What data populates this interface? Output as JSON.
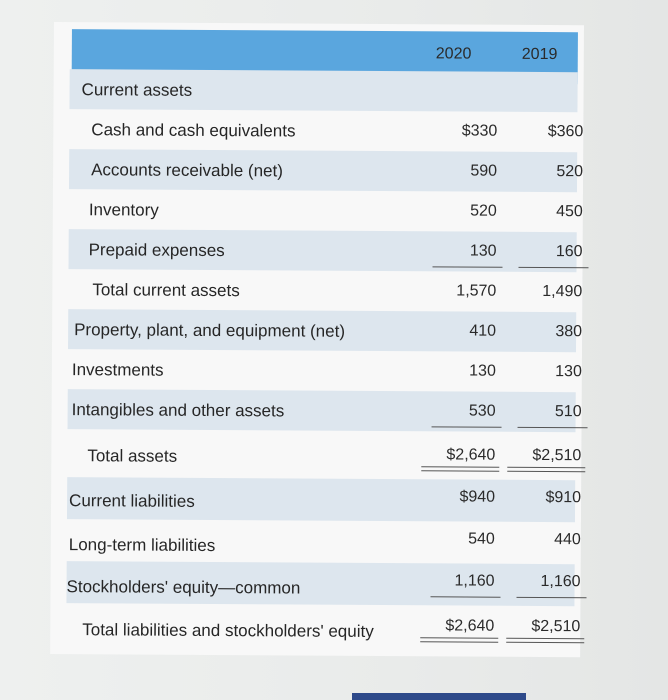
{
  "header": {
    "years": [
      "2020",
      "2019"
    ],
    "color": "#5aa6de"
  },
  "rows": [
    {
      "label": "Current assets",
      "v2020": "",
      "v2019": ""
    },
    {
      "label": "Cash and cash equivalents",
      "v2020": "$330",
      "v2019": "$360"
    },
    {
      "label": "Accounts receivable (net)",
      "v2020": "590",
      "v2019": "520"
    },
    {
      "label": "Inventory",
      "v2020": "520",
      "v2019": "450"
    },
    {
      "label": "Prepaid expenses",
      "v2020": "130",
      "v2019": "160"
    },
    {
      "label": "Total current assets",
      "v2020": "1,570",
      "v2019": "1,490"
    },
    {
      "label": "Property, plant, and equipment (net)",
      "v2020": "410",
      "v2019": "380"
    },
    {
      "label": "Investments",
      "v2020": "130",
      "v2019": "130"
    },
    {
      "label": "Intangibles and other assets",
      "v2020": "530",
      "v2019": "510"
    },
    {
      "label": "Total assets",
      "v2020": "$2,640",
      "v2019": "$2,510"
    },
    {
      "label": "Current liabilities",
      "v2020": "$940",
      "v2019": "$910"
    },
    {
      "label": "Long-term liabilities",
      "v2020": "540",
      "v2019": "440"
    },
    {
      "label": "Stockholders' equity—common",
      "v2020": "1,160",
      "v2019": "1,160"
    },
    {
      "label": "Total liabilities and stockholders' equity",
      "v2020": "$2,640",
      "v2019": "$2,510"
    }
  ]
}
